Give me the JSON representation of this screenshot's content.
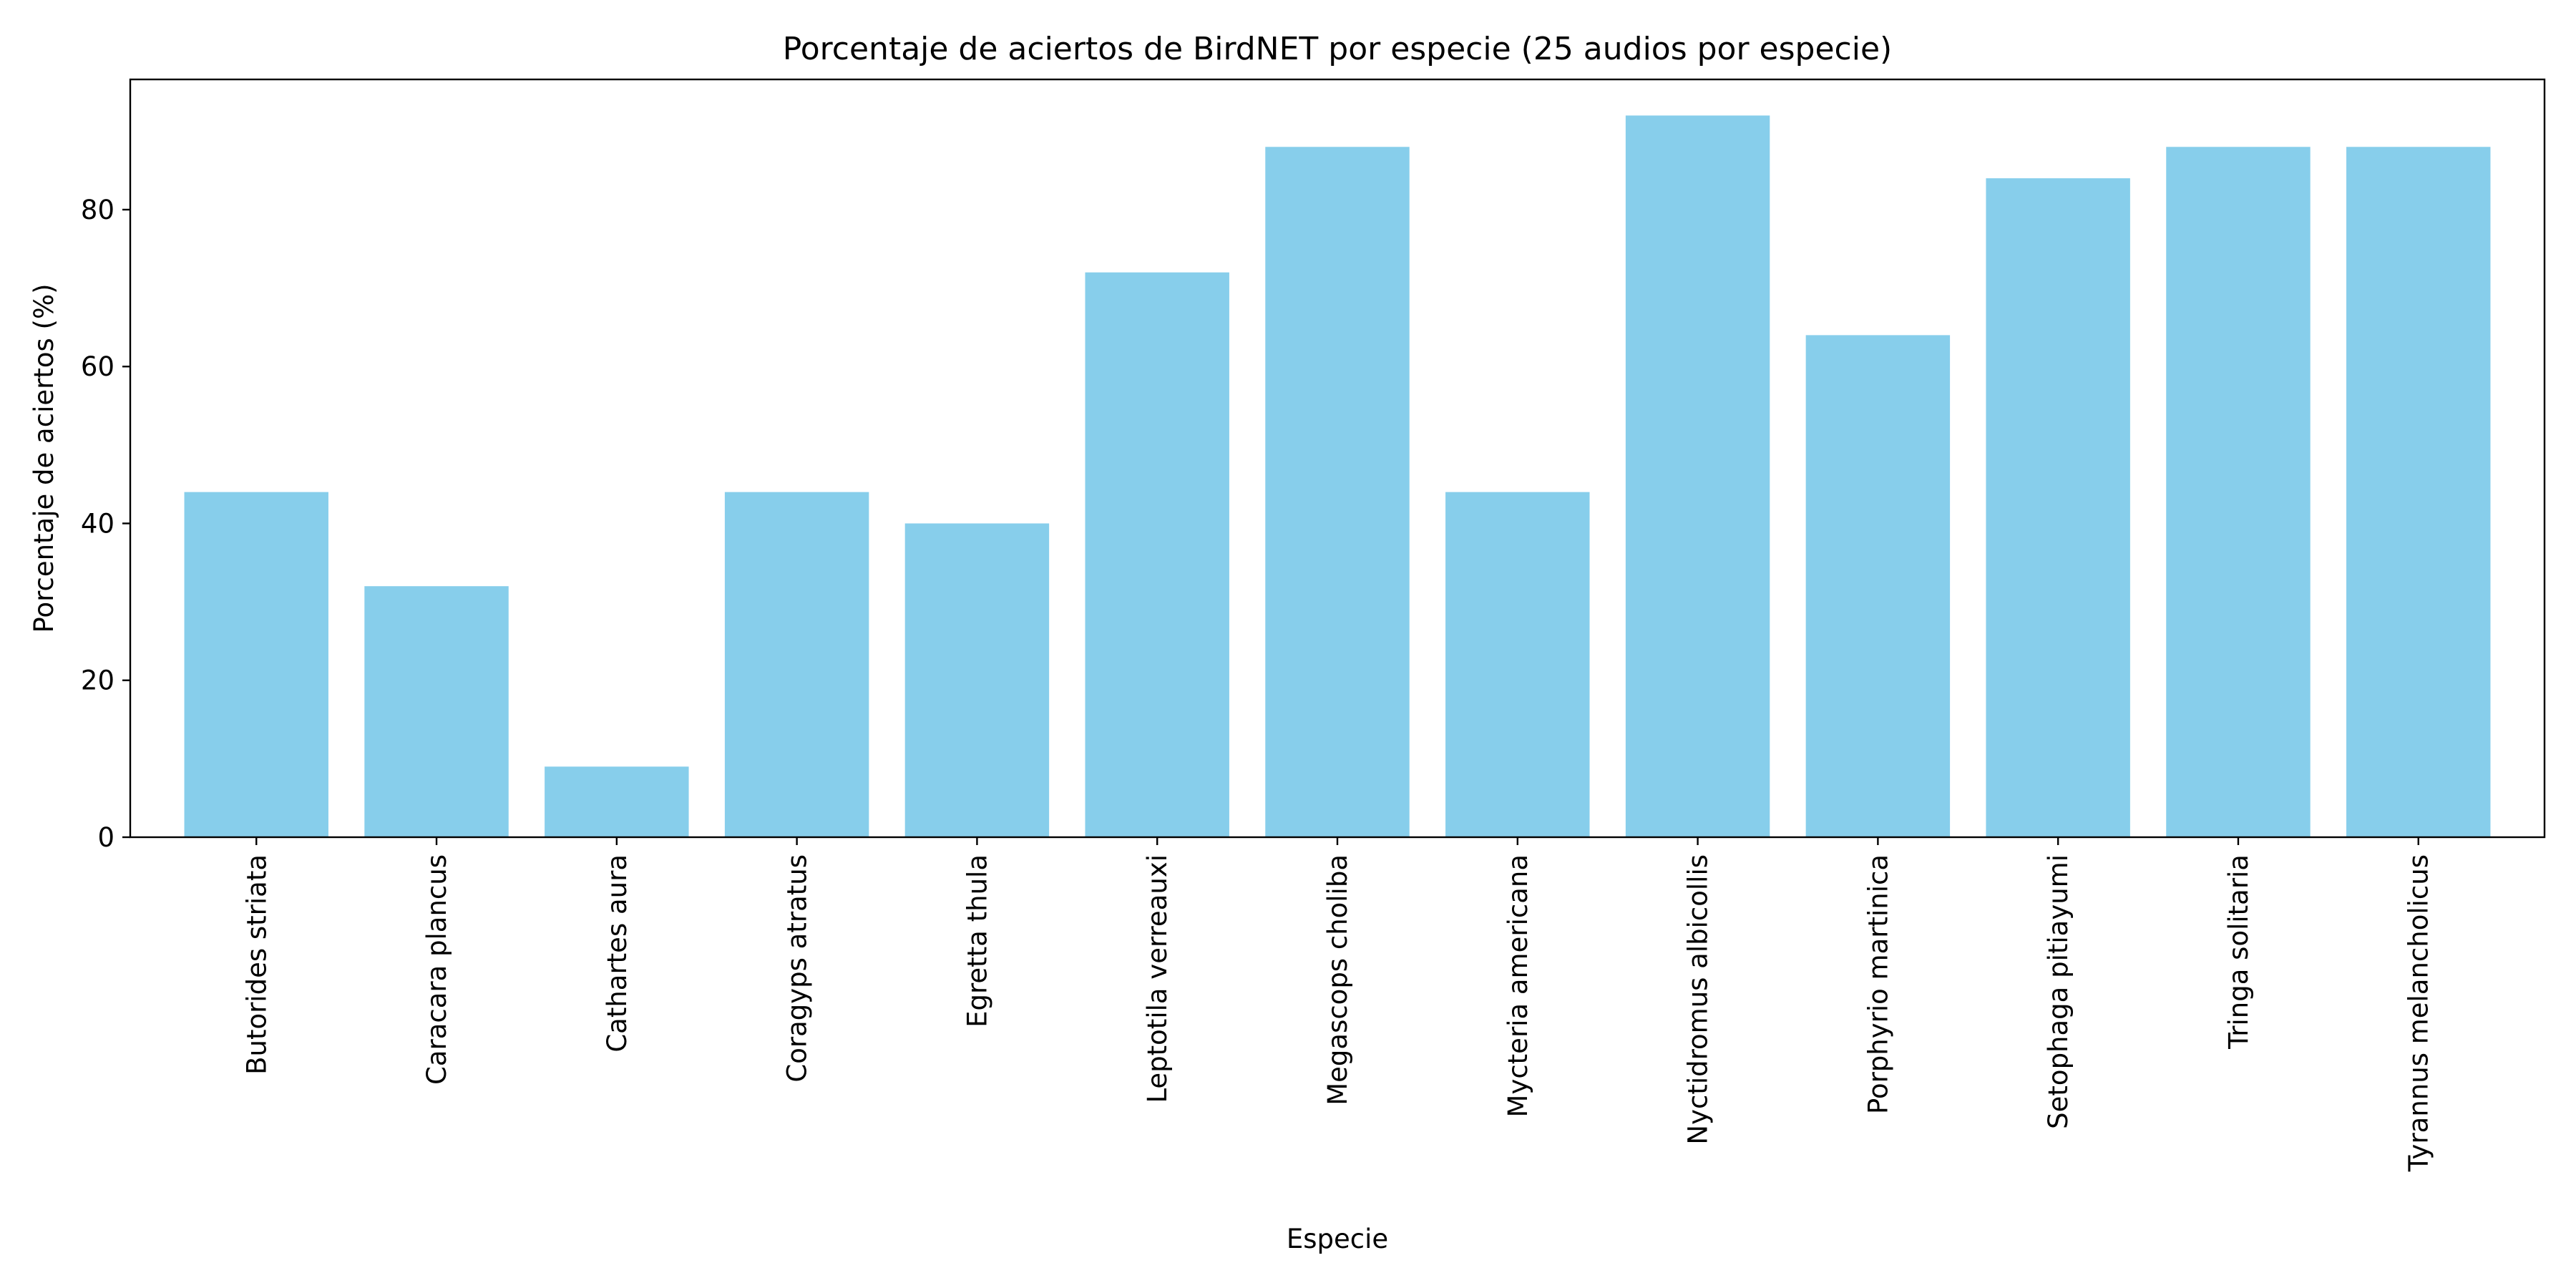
{
  "chart_data": {
    "type": "bar",
    "title": "Porcentaje de aciertos de BirdNET por especie (25 audios por especie)",
    "xlabel": "Especie",
    "ylabel": "Porcentaje de aciertos (%)",
    "ylim": [
      0,
      96.6
    ],
    "yticks": [
      0,
      20,
      40,
      60,
      80
    ],
    "grid": false,
    "legend": "none",
    "bar_color": "#87ceeb",
    "categories": [
      "Butorides striata",
      "Caracara plancus",
      "Cathartes aura",
      "Coragyps atratus",
      "Egretta thula",
      "Leptotila verreauxi",
      "Megascops choliba",
      "Mycteria americana",
      "Nyctidromus albicollis",
      "Porphyrio martinica",
      "Setophaga pitiayumi",
      "Tringa solitaria",
      "Tyrannus melancholicus"
    ],
    "values": [
      44,
      32,
      9,
      44,
      40,
      72,
      88,
      44,
      92,
      64,
      84,
      88,
      88
    ]
  }
}
